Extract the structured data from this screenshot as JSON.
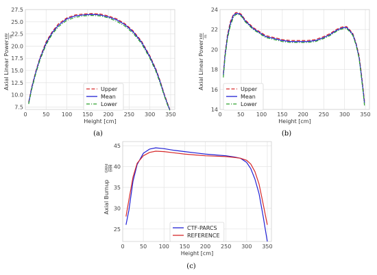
{
  "chart_data": [
    {
      "type": "line",
      "caption": "(a)",
      "xlabel": "Height [cm]",
      "ylabel": "Axial Linear Power",
      "ylabel_unit_num": "kW",
      "ylabel_unit_den": "m",
      "xlim": [
        0,
        360
      ],
      "ylim": [
        7.0,
        27.5
      ],
      "xticks": [
        0,
        50,
        100,
        150,
        200,
        250,
        300,
        350
      ],
      "yticks": [
        7.5,
        10.0,
        12.5,
        15.0,
        17.5,
        20.0,
        22.5,
        25.0,
        27.5
      ],
      "grid": true,
      "legend_position": "lower-center",
      "x": [
        8,
        15,
        25,
        35,
        50,
        65,
        80,
        100,
        120,
        140,
        160,
        180,
        200,
        220,
        240,
        260,
        280,
        300,
        315,
        325,
        335,
        342,
        348
      ],
      "series": [
        {
          "name": "Upper",
          "color": "#d62728",
          "style": "dashed",
          "values": [
            8.5,
            11.5,
            14.8,
            17.6,
            20.9,
            23.0,
            24.6,
            25.8,
            26.4,
            26.6,
            26.7,
            26.6,
            26.2,
            25.6,
            24.6,
            23.1,
            21.0,
            18.0,
            15.2,
            12.8,
            10.1,
            8.4,
            7.0
          ]
        },
        {
          "name": "Mean",
          "color": "#1f1fd4",
          "style": "solid",
          "values": [
            8.3,
            11.3,
            14.6,
            17.4,
            20.6,
            22.8,
            24.3,
            25.6,
            26.2,
            26.4,
            26.5,
            26.4,
            26.0,
            25.4,
            24.4,
            22.9,
            20.8,
            17.8,
            15.0,
            12.6,
            9.9,
            8.2,
            6.9
          ]
        },
        {
          "name": "Lower",
          "color": "#2ca02c",
          "style": "dashdot",
          "values": [
            8.1,
            11.0,
            14.3,
            17.1,
            20.3,
            22.5,
            24.0,
            25.3,
            25.9,
            26.2,
            26.3,
            26.2,
            25.8,
            25.1,
            24.1,
            22.6,
            20.5,
            17.5,
            14.7,
            12.3,
            9.7,
            8.0,
            6.8
          ]
        }
      ]
    },
    {
      "type": "line",
      "caption": "(b)",
      "xlabel": "Height [cm]",
      "ylabel": "Axial Linear Power",
      "ylabel_unit_num": "kW",
      "ylabel_unit_den": "m",
      "xlim": [
        0,
        360
      ],
      "ylim": [
        14,
        24
      ],
      "xticks": [
        0,
        50,
        100,
        150,
        200,
        250,
        300,
        350
      ],
      "yticks": [
        14,
        16,
        18,
        20,
        22,
        24
      ],
      "grid": true,
      "legend_position": "lower-left",
      "x": [
        8,
        12,
        18,
        25,
        32,
        38,
        45,
        52,
        60,
        70,
        80,
        95,
        110,
        130,
        150,
        170,
        190,
        210,
        230,
        250,
        265,
        280,
        290,
        298,
        305,
        312,
        320,
        328,
        335,
        340,
        345,
        348
      ],
      "series": [
        {
          "name": "Upper",
          "color": "#d62728",
          "style": "dashed",
          "values": [
            17.6,
            19.6,
            21.5,
            22.8,
            23.5,
            23.7,
            23.7,
            23.5,
            23.0,
            22.6,
            22.2,
            21.8,
            21.4,
            21.2,
            21.0,
            20.9,
            20.9,
            20.9,
            21.0,
            21.3,
            21.6,
            22.0,
            22.2,
            22.3,
            22.3,
            22.0,
            21.6,
            20.6,
            19.4,
            17.8,
            16.0,
            14.8
          ]
        },
        {
          "name": "Mean",
          "color": "#1f1fd4",
          "style": "solid",
          "values": [
            17.4,
            19.4,
            21.3,
            22.6,
            23.4,
            23.6,
            23.6,
            23.4,
            22.9,
            22.5,
            22.1,
            21.7,
            21.3,
            21.1,
            20.9,
            20.8,
            20.8,
            20.8,
            20.9,
            21.2,
            21.5,
            21.9,
            22.1,
            22.2,
            22.2,
            21.9,
            21.5,
            20.5,
            19.2,
            17.6,
            15.8,
            14.6
          ]
        },
        {
          "name": "Lower",
          "color": "#2ca02c",
          "style": "dashdot",
          "values": [
            17.2,
            19.2,
            21.1,
            22.4,
            23.2,
            23.5,
            23.5,
            23.3,
            22.8,
            22.4,
            22.0,
            21.6,
            21.2,
            21.0,
            20.8,
            20.7,
            20.7,
            20.7,
            20.8,
            21.1,
            21.4,
            21.8,
            22.0,
            22.1,
            22.1,
            21.8,
            21.4,
            20.4,
            19.1,
            17.4,
            15.6,
            14.4
          ]
        }
      ]
    },
    {
      "type": "line",
      "caption": "(c)",
      "xlabel": "Height [cm]",
      "ylabel": "Axial Burnup",
      "ylabel_unit_num": "GWd",
      "ylabel_unit_den": "tHM",
      "xlim": [
        0,
        360
      ],
      "ylim": [
        22,
        46
      ],
      "xticks": [
        0,
        50,
        100,
        150,
        200,
        250,
        300,
        350
      ],
      "yticks": [
        25,
        30,
        35,
        40,
        45
      ],
      "grid": true,
      "legend_position": "lower-center",
      "series": [
        {
          "name": "CTF-PARCS",
          "color": "#1f1fd4",
          "style": "solid",
          "x": [
            8,
            15,
            25,
            35,
            50,
            65,
            80,
            100,
            125,
            150,
            175,
            200,
            225,
            250,
            270,
            285,
            300,
            310,
            320,
            330,
            340,
            350
          ],
          "values": [
            26.0,
            29.5,
            36.5,
            40.5,
            43.2,
            44.2,
            44.5,
            44.3,
            43.9,
            43.6,
            43.3,
            43.0,
            42.8,
            42.6,
            42.3,
            42.0,
            41.0,
            39.5,
            37.0,
            33.5,
            28.0,
            22.0
          ]
        },
        {
          "name": "REFERENCE",
          "color": "#d62728",
          "style": "solid",
          "x": [
            8,
            15,
            25,
            35,
            50,
            65,
            80,
            100,
            125,
            150,
            175,
            200,
            225,
            250,
            270,
            285,
            300,
            310,
            320,
            330,
            340,
            350
          ],
          "values": [
            28.0,
            32.0,
            37.5,
            40.8,
            42.6,
            43.4,
            43.7,
            43.6,
            43.3,
            43.0,
            42.8,
            42.6,
            42.5,
            42.4,
            42.2,
            42.0,
            41.5,
            40.6,
            38.8,
            35.8,
            31.0,
            26.0
          ]
        }
      ]
    }
  ]
}
